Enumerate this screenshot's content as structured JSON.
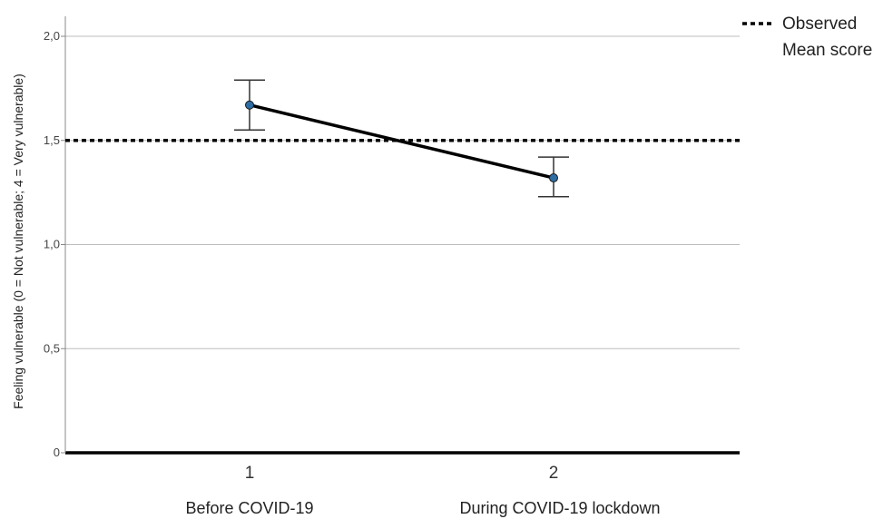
{
  "chart_data": {
    "type": "line",
    "ylabel": "Feeling vulnerable (0 = Not vulnerable; 4 = Very vulnerable)",
    "xlabel": "",
    "x_ticks": [
      "1",
      "2"
    ],
    "categories": [
      "Before COVID-19",
      "During COVID-19 lockdown"
    ],
    "ylim": [
      0,
      2.0
    ],
    "y_ticks": [
      {
        "value": 0,
        "label": "0"
      },
      {
        "value": 0.5,
        "label": "0,5"
      },
      {
        "value": 1.0,
        "label": "1,0"
      },
      {
        "value": 1.5,
        "label": "1,5"
      },
      {
        "value": 2.0,
        "label": "2,0"
      }
    ],
    "grid": true,
    "series": [
      {
        "values": [
          1.67,
          1.32
        ],
        "error_low": [
          1.55,
          1.23
        ],
        "error_high": [
          1.79,
          1.42
        ],
        "color": "#000000",
        "marker_color": "#2e6da4"
      }
    ],
    "reference_line": {
      "value": 1.5,
      "label_line1": "Observed",
      "label_line2": "Mean score",
      "style": "dotted"
    },
    "legend_position": "top-right"
  }
}
